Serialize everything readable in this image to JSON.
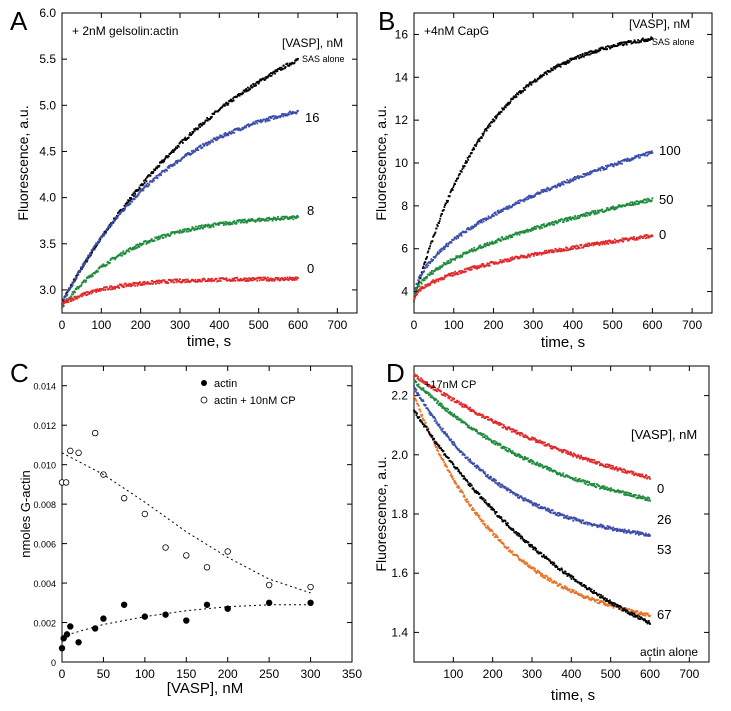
{
  "chart_data": [
    {
      "panel_label": "A",
      "type": "scatter",
      "annotation": "+ 2nM gelsolin:actin",
      "legend_title": "[VASP], nM",
      "xlabel": "time, s",
      "ylabel": "Fluorescence, a.u.",
      "xlim": [
        0,
        750
      ],
      "ylim": [
        2.75,
        6.0
      ],
      "xticks": [
        0,
        100,
        200,
        300,
        400,
        500,
        600,
        700
      ],
      "yticks": [
        3.0,
        3.5,
        4.0,
        4.5,
        5.0,
        5.5,
        6.0
      ],
      "ytick_labels": [
        "3.0",
        "3.5",
        "4.0",
        "4.5",
        "5.0",
        "5.5",
        "6.0"
      ],
      "series": [
        {
          "name": "SAS alone",
          "color": "#000000",
          "kind": "exp",
          "x0": 0,
          "x1": 600,
          "y0": 2.87,
          "ymax": 6.55,
          "tau": 480
        },
        {
          "name": "16",
          "color": "#3a4da8",
          "kind": "exp",
          "x0": 0,
          "x1": 600,
          "y0": 2.85,
          "ymax": 5.2,
          "tau": 275
        },
        {
          "name": "8",
          "color": "#1e8a3c",
          "kind": "exp",
          "x0": 0,
          "x1": 600,
          "y0": 2.82,
          "ymax": 3.82,
          "tau": 180
        },
        {
          "name": "0",
          "color": "#e0282a",
          "kind": "exp",
          "x0": 0,
          "x1": 600,
          "y0": 2.85,
          "ymax": 3.12,
          "tau": 120
        }
      ]
    },
    {
      "panel_label": "B",
      "type": "scatter",
      "annotation": "+4nM CapG",
      "legend_title": "[VASP], nM",
      "xlabel": "time, s",
      "ylabel": "Fluorescence, a.u.",
      "xlim": [
        0,
        750
      ],
      "ylim": [
        3,
        17
      ],
      "xticks": [
        0,
        100,
        200,
        300,
        400,
        500,
        600,
        700
      ],
      "yticks": [
        4,
        6,
        8,
        10,
        12,
        14,
        16
      ],
      "ytick_labels": [
        "4",
        "6",
        "8",
        "10",
        "12",
        "14",
        "16"
      ],
      "series": [
        {
          "name": "SAS alone",
          "color": "#000000",
          "kind": "exp",
          "x0": 0,
          "x1": 600,
          "y0": 3.6,
          "ymax": 16.3,
          "tau": 185
        },
        {
          "name": "100",
          "color": "#3a4da8",
          "kind": "sqrt",
          "x0": 0,
          "x1": 600,
          "y0": 3.6,
          "yend": 10.5
        },
        {
          "name": "50",
          "color": "#1e8a3c",
          "kind": "sqrt",
          "x0": 0,
          "x1": 600,
          "y0": 3.6,
          "yend": 8.3
        },
        {
          "name": "0",
          "color": "#e0282a",
          "kind": "sqrt",
          "x0": 0,
          "x1": 600,
          "y0": 3.6,
          "yend": 6.6
        }
      ]
    },
    {
      "panel_label": "C",
      "type": "scatter",
      "xlabel": "[VASP], nM",
      "ylabel": "nmoles G-actin",
      "xlim": [
        0,
        350
      ],
      "ylim": [
        0,
        0.015
      ],
      "xticks": [
        0,
        50,
        100,
        150,
        200,
        250,
        300,
        350
      ],
      "yticks": [
        0,
        0.002,
        0.004,
        0.006,
        0.008,
        0.01,
        0.012,
        0.014
      ],
      "ytick_labels": [
        "0",
        "0.002",
        "0.004",
        "0.006",
        "0.008",
        "0.010",
        "0.012",
        "0.014"
      ],
      "legend": [
        {
          "label": "actin",
          "marker": "filled-circle"
        },
        {
          "label": "actin + 10nM CP",
          "marker": "open-circle"
        }
      ],
      "series": [
        {
          "name": "actin",
          "marker": "filled-circle",
          "points": [
            [
              0,
              0.0007
            ],
            [
              2,
              0.0012
            ],
            [
              6,
              0.0014
            ],
            [
              10,
              0.0018
            ],
            [
              20,
              0.001
            ],
            [
              40,
              0.0017
            ],
            [
              50,
              0.0022
            ],
            [
              75,
              0.0029
            ],
            [
              100,
              0.0023
            ],
            [
              125,
              0.0024
            ],
            [
              150,
              0.0021
            ],
            [
              175,
              0.0029
            ],
            [
              200,
              0.0027
            ],
            [
              250,
              0.003
            ],
            [
              300,
              0.003
            ]
          ],
          "fit": [
            [
              0,
              0.0013
            ],
            [
              50,
              0.0019
            ],
            [
              100,
              0.0023
            ],
            [
              150,
              0.0026
            ],
            [
              200,
              0.0028
            ],
            [
              250,
              0.0029
            ],
            [
              300,
              0.0029
            ]
          ]
        },
        {
          "name": "actin + 10nM CP",
          "marker": "open-circle",
          "points": [
            [
              0,
              0.0091
            ],
            [
              5,
              0.0091
            ],
            [
              10,
              0.0107
            ],
            [
              20,
              0.0106
            ],
            [
              40,
              0.0116
            ],
            [
              50,
              0.0095
            ],
            [
              75,
              0.0083
            ],
            [
              100,
              0.0075
            ],
            [
              125,
              0.0058
            ],
            [
              150,
              0.0054
            ],
            [
              175,
              0.0048
            ],
            [
              200,
              0.0056
            ],
            [
              250,
              0.0039
            ],
            [
              300,
              0.0038
            ]
          ],
          "fit": [
            [
              0,
              0.0106
            ],
            [
              50,
              0.0095
            ],
            [
              100,
              0.0081
            ],
            [
              150,
              0.0066
            ],
            [
              200,
              0.0053
            ],
            [
              250,
              0.0042
            ],
            [
              300,
              0.0035
            ]
          ]
        }
      ]
    },
    {
      "panel_label": "D",
      "type": "scatter",
      "annotation": "+17nM CP",
      "legend_title": "[VASP], nM",
      "xlabel": "time, s",
      "ylabel": "Fluorescence, a.u.",
      "xlim": [
        0,
        750
      ],
      "ylim": [
        1.3,
        2.3
      ],
      "xticks": [
        100,
        200,
        300,
        400,
        500,
        600,
        700
      ],
      "yticks": [
        1.4,
        1.6,
        1.8,
        2.0,
        2.2
      ],
      "ytick_labels": [
        "1.4",
        "1.6",
        "1.8",
        "2.0",
        "2.2"
      ],
      "series": [
        {
          "name": "0",
          "color": "#e0282a",
          "kind": "decay",
          "x0": 0,
          "x1": 600,
          "y0": 2.27,
          "yinf": 1.72,
          "tau": 600
        },
        {
          "name": "26",
          "color": "#1e8a3c",
          "kind": "decay",
          "x0": 0,
          "x1": 600,
          "y0": 2.25,
          "yinf": 1.74,
          "tau": 390
        },
        {
          "name": "53",
          "color": "#3a4da8",
          "kind": "decay",
          "x0": 0,
          "x1": 600,
          "y0": 2.23,
          "yinf": 1.69,
          "tau": 230
        },
        {
          "name": "67",
          "color": "#e8742a",
          "kind": "decay",
          "x0": 0,
          "x1": 600,
          "y0": 2.2,
          "yinf": 1.4,
          "tau": 230
        },
        {
          "name": "actin alone",
          "color": "#000000",
          "kind": "decay",
          "x0": 0,
          "x1": 600,
          "y0": 2.15,
          "yinf": 1.1,
          "tau": 520
        }
      ]
    }
  ]
}
